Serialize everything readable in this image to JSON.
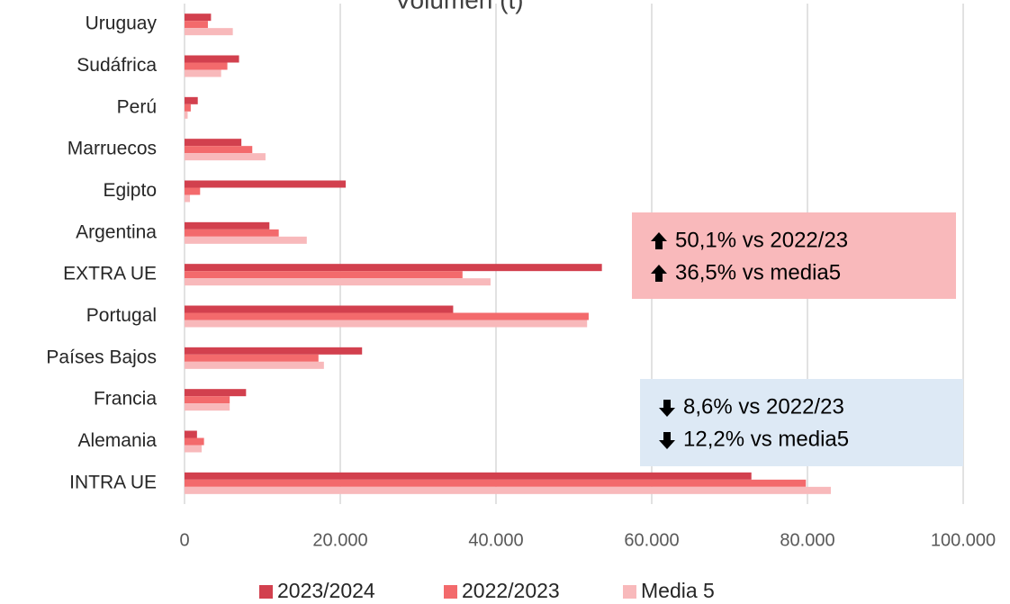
{
  "chart_data": {
    "type": "hbar",
    "title": "Volumen (t)",
    "categories": [
      "Uruguay",
      "Sudáfrica",
      "Perú",
      "Marruecos",
      "Egipto",
      "Argentina",
      "EXTRA UE",
      "Portugal",
      "Países Bajos",
      "Francia",
      "Alemania",
      "INTRA UE"
    ],
    "series": [
      {
        "name": "2023/2024",
        "color": "#d2404e",
        "values": [
          3400,
          7000,
          1700,
          7300,
          20700,
          10900,
          53600,
          34500,
          22800,
          7900,
          1600,
          72800
        ]
      },
      {
        "name": "2022/2023",
        "color": "#f36a6c",
        "values": [
          3000,
          5500,
          800,
          8700,
          2000,
          12100,
          35700,
          51900,
          17200,
          5800,
          2500,
          79800
        ]
      },
      {
        "name": "Media 5",
        "color": "#f8b9bb",
        "values": [
          6200,
          4700,
          400,
          10400,
          700,
          15700,
          39300,
          51700,
          17900,
          5800,
          2200,
          83000
        ]
      }
    ],
    "xlim": [
      0,
      100000
    ],
    "xticks": [
      0,
      {
        "value": 20000,
        "label": "20.000"
      },
      {
        "value": 40000,
        "label": "40.000"
      },
      {
        "value": 60000,
        "label": "60.000"
      },
      {
        "value": 80000,
        "label": "80.000"
      },
      {
        "value": 100000,
        "label": "100.000"
      }
    ],
    "grid": true,
    "legend": "bottom",
    "annotations": [
      {
        "lines": [
          "50,1% vs 2022/23",
          "36,5% vs media5"
        ],
        "color": "#f9b9bb"
      },
      {
        "lines": [
          "8,6% vs 2022/23",
          "12,2% vs media5"
        ],
        "color": "#dde9f5"
      }
    ]
  }
}
